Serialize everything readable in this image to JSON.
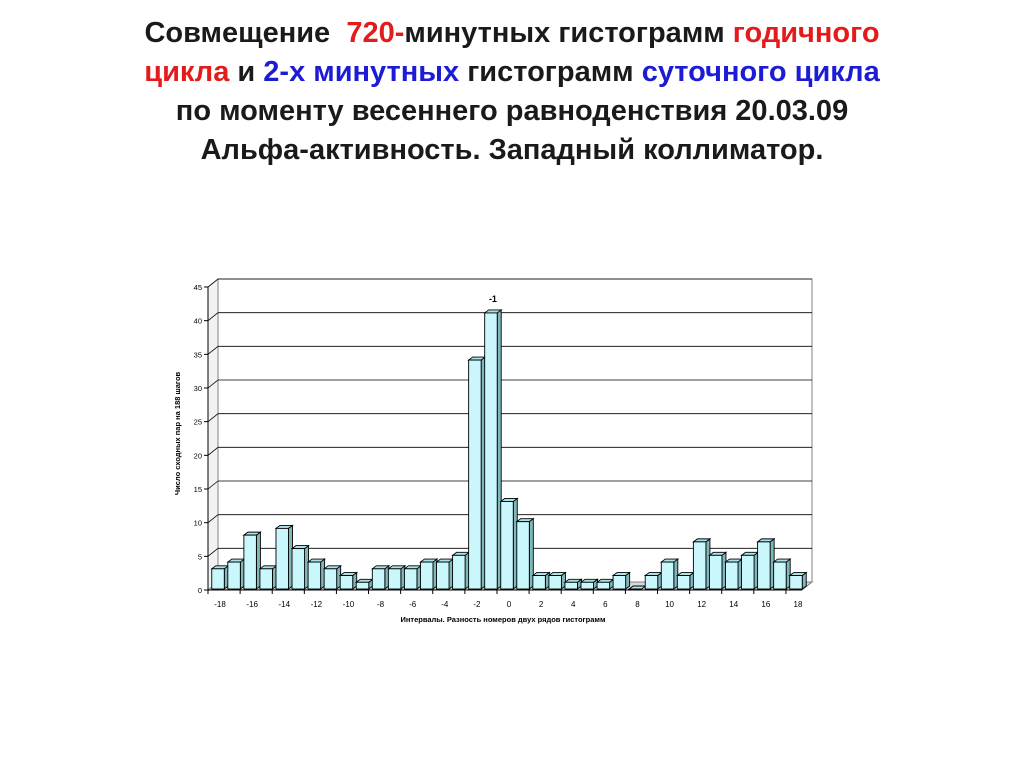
{
  "title": {
    "line1": [
      "Совмещение",
      "720-",
      "минутных гистограмм",
      "годичного"
    ],
    "line2": [
      "цикла",
      "и",
      "2-х минутных",
      "гистограмм",
      "суточного цикла"
    ],
    "line3": "по моменту весеннего равноденствия 20.03.09",
    "line4": "Альфа-активность. Западный коллиматор."
  },
  "colors": {
    "red": "#e31b1b",
    "blue": "#1c1cd6",
    "bar_fill": "#c9f7fb",
    "bar_side": "#7fb8bc",
    "gridline": "#000000"
  },
  "chart_data": {
    "type": "bar",
    "categories": [
      -18,
      -17,
      -16,
      -15,
      -14,
      -13,
      -12,
      -11,
      -10,
      -9,
      -8,
      -7,
      -6,
      -5,
      -4,
      -3,
      -2,
      -1,
      0,
      1,
      2,
      3,
      4,
      5,
      6,
      7,
      8,
      9,
      10,
      11,
      12,
      13,
      14,
      15,
      16,
      17,
      18
    ],
    "values": [
      3,
      4,
      8,
      3,
      9,
      6,
      4,
      3,
      2,
      1,
      3,
      3,
      3,
      4,
      4,
      5,
      34,
      41,
      13,
      10,
      2,
      2,
      1,
      1,
      1,
      2,
      0,
      2,
      4,
      2,
      7,
      5,
      4,
      5,
      7,
      4,
      2
    ],
    "xticks": [
      "-18",
      "-16",
      "-14",
      "-12",
      "-10",
      "-8",
      "-6",
      "-4",
      "-2",
      "0",
      "2",
      "4",
      "6",
      "8",
      "10",
      "12",
      "14",
      "16",
      "18"
    ],
    "yticks": [
      "0",
      "5",
      "10",
      "15",
      "20",
      "25",
      "30",
      "35",
      "40",
      "45"
    ],
    "ylim": [
      0,
      45
    ],
    "xlabel": "Интервалы. Разность номеров двух рядов гистограмм",
    "ylabel": "Число сходных пар на 188 шагов",
    "annotation": {
      "text": "-1",
      "category": -1
    },
    "grid": true
  }
}
